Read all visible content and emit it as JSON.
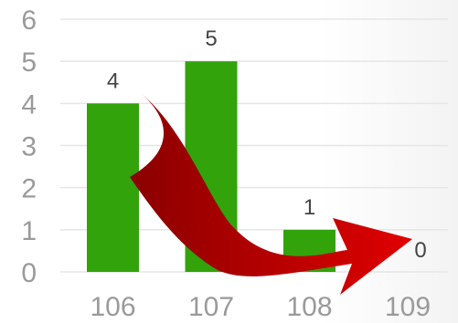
{
  "chart_data": {
    "type": "bar",
    "categories": [
      "106",
      "107",
      "108",
      "109"
    ],
    "values": [
      4,
      5,
      1,
      0
    ],
    "data_labels": [
      "4",
      "5",
      "1",
      "0"
    ],
    "y_ticks": [
      "0",
      "1",
      "2",
      "3",
      "4",
      "5",
      "6"
    ],
    "ylim": [
      0,
      6
    ],
    "grid": true,
    "legend": "none",
    "title": "",
    "xlabel": "",
    "ylabel": "",
    "colors": {
      "bar": "#33a30b",
      "arrow_dark": "#8a0000",
      "arrow_light": "#e00000",
      "grid": "#e6e6e6",
      "tick_text": "#9a9a9a",
      "label_text": "#444444"
    },
    "annotation": {
      "shape": "curved-arrow",
      "from_category": "106",
      "to_category": "109",
      "meaning": "downward trend"
    }
  }
}
